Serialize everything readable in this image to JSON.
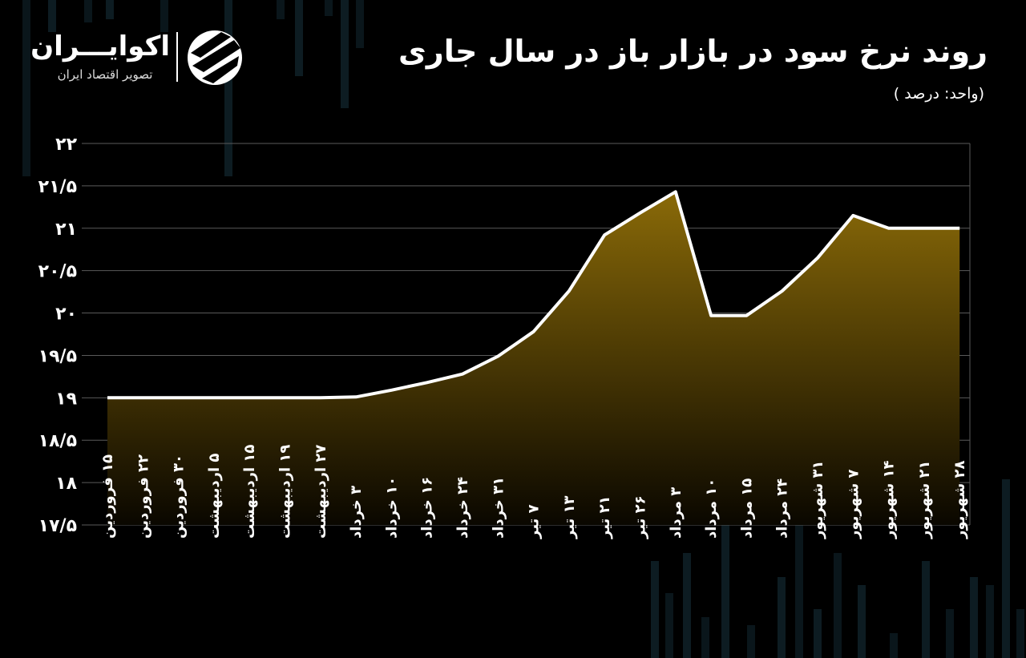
{
  "header": {
    "title": "روند نرخ سود در بازار باز در سال جاری",
    "subtitle": "(واحد: درصد )"
  },
  "logo": {
    "name": "اکوایـــران",
    "tagline": "تصویر اقتصاد ایران"
  },
  "colors": {
    "background": "#000000",
    "line": "#ffffff",
    "area_top": "#8a6a08",
    "area_bottom": "#0a0700",
    "grid": "#5a5a5a"
  },
  "chart_data": {
    "type": "area",
    "title": "روند نرخ سود در بازار باز در سال جاری",
    "subtitle": "(واحد: درصد )",
    "xlabel": "",
    "ylabel": "",
    "ylim": [
      17.5,
      22
    ],
    "grid": true,
    "legend": "none",
    "y_ticks": [
      {
        "value": 17.5,
        "label": "۱۷/۵"
      },
      {
        "value": 18,
        "label": "۱۸"
      },
      {
        "value": 18.5,
        "label": "۱۸/۵"
      },
      {
        "value": 19,
        "label": "۱۹"
      },
      {
        "value": 19.5,
        "label": "۱۹/۵"
      },
      {
        "value": 20,
        "label": "۲۰"
      },
      {
        "value": 20.5,
        "label": "۲۰/۵"
      },
      {
        "value": 21,
        "label": "۲۱"
      },
      {
        "value": 21.5,
        "label": "۲۱/۵"
      },
      {
        "value": 22,
        "label": "۲۲"
      }
    ],
    "categories": [
      "۱۵ فروردین",
      "۲۲ فروردین",
      "۳۰ فروردین",
      "۵ اردیبهشت",
      "۱۵ اردیبهشت",
      "۱۹ اردیبهشت",
      "۲۷ اردیبهشت",
      "۳ خرداد",
      "۱۰ خرداد",
      "۱۶ خرداد",
      "۲۴ خرداد",
      "۳۱ خرداد",
      "۷ تیر",
      "۱۳ تیر",
      "۲۱ تیر",
      "۲۶ تیر",
      "۳ مرداد",
      "۱۰ مرداد",
      "۱۵ مرداد",
      "۲۴ مرداد",
      "۳۱ شهریور",
      "۷ شهریور",
      "۱۴ شهریور",
      "۲۱ شهریور",
      "۲۸ شهریور"
    ],
    "values": [
      19.0,
      19.0,
      19.0,
      19.0,
      19.0,
      19.0,
      19.0,
      19.01,
      19.09,
      19.18,
      19.28,
      19.49,
      19.78,
      20.26,
      20.92,
      21.18,
      21.43,
      19.97,
      19.97,
      20.26,
      20.65,
      21.15,
      21.0,
      21.0,
      21.0
    ]
  }
}
